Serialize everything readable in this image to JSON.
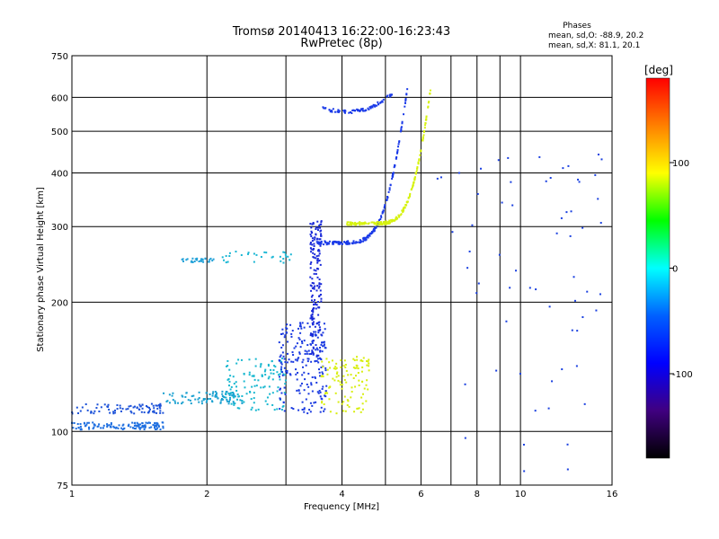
{
  "chart_data": {
    "type": "scatter",
    "title": "Tromsø 20140413 16:22:00-16:23:43",
    "subtitle": "RwPretec (8p)",
    "stats": {
      "heading": "Phases",
      "line1": "mean, sd,O: -88.9, 20.2",
      "line2": "mean, sd,X:  81.1, 20.1"
    },
    "xlabel": "Frequency [MHz]",
    "ylabel": "Stationary phase Virtual Height [km]",
    "x_scale": "log",
    "y_scale": "log",
    "xlim": [
      1,
      16
    ],
    "ylim": [
      75,
      750
    ],
    "x_ticks": [
      1,
      2,
      4,
      6,
      8,
      10,
      16
    ],
    "x_tick_labels": [
      "1",
      "2",
      "4",
      "6",
      "8",
      "10",
      "16"
    ],
    "x_grid_minor": [
      3,
      5,
      7,
      9
    ],
    "y_ticks": [
      75,
      100,
      200,
      300,
      400,
      500,
      600,
      750
    ],
    "y_tick_labels": [
      "75",
      "100",
      "200",
      "300",
      "400",
      "500",
      "600",
      "750"
    ],
    "grid": true,
    "colorbar": {
      "label": "[deg]",
      "range": [
        -180,
        180
      ],
      "ticks": [
        100,
        0,
        -100
      ],
      "tick_labels": [
        "100",
        "0",
        "-100"
      ],
      "colors": [
        "#ff0000",
        "#ff8000",
        "#ffff00",
        "#00ff00",
        "#00ffff",
        "#0060ff",
        "#0000ff",
        "#400080",
        "#000000"
      ]
    },
    "series": [
      {
        "id": "e-layer-low",
        "f_range": [
          1.0,
          1.6
        ],
        "h_base": 103,
        "h_spread": 2,
        "color": "#1e6fe0",
        "n": 120
      },
      {
        "id": "e-layer-mid",
        "f_range": [
          1.0,
          1.6
        ],
        "h_base": 113,
        "h_spread": 3,
        "color": "#1a50d8",
        "n": 80
      },
      {
        "id": "es-ramp",
        "f_range": [
          1.6,
          2.4
        ],
        "h_base": 120,
        "h_spread": 4,
        "color": "#1aa0d0",
        "n": 90
      },
      {
        "id": "f1-cyan",
        "f_range": [
          2.2,
          3.0
        ],
        "h_base": 130,
        "h_spread": 18,
        "color": "#19b8d0",
        "n": 120
      },
      {
        "id": "f1-blue",
        "f_range": [
          2.9,
          3.7
        ],
        "h_base": 145,
        "h_spread": 35,
        "color": "#1a3ae0",
        "n": 220
      },
      {
        "id": "f1-cusp",
        "f_range": [
          3.4,
          3.6
        ],
        "h_base": 230,
        "h_spread": 80,
        "color": "#1a2ad8",
        "n": 160
      },
      {
        "id": "ice-ledge",
        "f_range": [
          1.7,
          2.1
        ],
        "h_base": 250,
        "h_spread": 3,
        "color": "#1fa0d8",
        "n": 30
      },
      {
        "id": "ice-ledge2",
        "f_range": [
          2.1,
          3.1
        ],
        "h_base": 255,
        "h_spread": 8,
        "color": "#19b6d4",
        "n": 30
      },
      {
        "id": "x-mode-low",
        "f_range": [
          3.6,
          4.6
        ],
        "h_base": 130,
        "h_spread": 20,
        "color": "#d8ee10",
        "n": 110
      },
      {
        "id": "f2-o-trace",
        "f_range": [
          3.5,
          5.6
        ],
        "h_base": 275,
        "h_spread": 5,
        "color": "#1a3ae8",
        "n": 200,
        "curve": "o"
      },
      {
        "id": "f2-x-trace",
        "f_range": [
          4.1,
          6.3
        ],
        "h_base": 305,
        "h_spread": 5,
        "color": "#d6f20f",
        "n": 200,
        "curve": "x"
      },
      {
        "id": "upper-o",
        "f_range": [
          3.6,
          5.2
        ],
        "h_base": 555,
        "h_spread": 10,
        "color": "#1a3ae8",
        "n": 80,
        "curve": "u"
      },
      {
        "id": "hf-noise",
        "f_range": [
          6.5,
          15.5
        ],
        "h_base": 250,
        "h_spread": 200,
        "color": "#1a40e0",
        "n": 70
      }
    ]
  }
}
